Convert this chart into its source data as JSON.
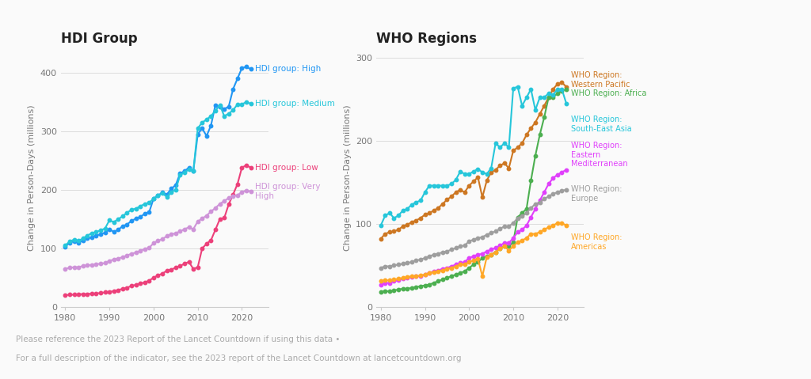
{
  "years": [
    1980,
    1981,
    1982,
    1983,
    1984,
    1985,
    1986,
    1987,
    1988,
    1989,
    1990,
    1991,
    1992,
    1993,
    1994,
    1995,
    1996,
    1997,
    1998,
    1999,
    2000,
    2001,
    2002,
    2003,
    2004,
    2005,
    2006,
    2007,
    2008,
    2009,
    2010,
    2011,
    2012,
    2013,
    2014,
    2015,
    2016,
    2017,
    2018,
    2019,
    2020,
    2021,
    2022
  ],
  "hdi_high": [
    103,
    110,
    112,
    110,
    113,
    117,
    119,
    122,
    124,
    127,
    133,
    128,
    132,
    138,
    141,
    147,
    151,
    154,
    159,
    162,
    185,
    190,
    196,
    192,
    202,
    208,
    228,
    232,
    238,
    232,
    295,
    305,
    292,
    310,
    345,
    342,
    338,
    342,
    372,
    390,
    408,
    410,
    406
  ],
  "hdi_medium": [
    105,
    112,
    115,
    113,
    117,
    122,
    126,
    128,
    131,
    134,
    148,
    145,
    150,
    155,
    161,
    166,
    168,
    172,
    176,
    178,
    185,
    190,
    194,
    188,
    196,
    200,
    225,
    230,
    235,
    232,
    305,
    315,
    320,
    326,
    335,
    345,
    326,
    330,
    336,
    346,
    346,
    350,
    347
  ],
  "hdi_low": [
    20,
    21,
    21,
    22,
    22,
    22,
    23,
    23,
    24,
    25,
    26,
    27,
    29,
    31,
    33,
    36,
    38,
    40,
    42,
    45,
    50,
    54,
    57,
    62,
    64,
    67,
    70,
    74,
    77,
    65,
    68,
    100,
    108,
    114,
    132,
    150,
    152,
    175,
    192,
    210,
    238,
    242,
    238
  ],
  "hdi_veryhigh": [
    65,
    67,
    68,
    68,
    70,
    71,
    72,
    73,
    74,
    75,
    79,
    81,
    83,
    85,
    88,
    91,
    93,
    96,
    99,
    101,
    109,
    113,
    116,
    121,
    124,
    126,
    129,
    133,
    136,
    133,
    146,
    151,
    156,
    163,
    169,
    176,
    181,
    186,
    189,
    191,
    196,
    199,
    197
  ],
  "who_wp": [
    82,
    88,
    90,
    91,
    93,
    97,
    99,
    102,
    104,
    107,
    111,
    113,
    116,
    119,
    124,
    129,
    133,
    138,
    141,
    138,
    146,
    151,
    156,
    132,
    152,
    162,
    165,
    170,
    173,
    167,
    188,
    192,
    197,
    207,
    215,
    222,
    232,
    242,
    252,
    262,
    268,
    270,
    265
  ],
  "who_afr": [
    18,
    19,
    19,
    20,
    21,
    22,
    22,
    23,
    24,
    25,
    26,
    27,
    29,
    31,
    33,
    35,
    37,
    39,
    41,
    43,
    47,
    51,
    54,
    59,
    61,
    63,
    66,
    70,
    73,
    73,
    78,
    108,
    113,
    118,
    152,
    182,
    207,
    228,
    252,
    252,
    257,
    260,
    262
  ],
  "who_sea": [
    98,
    110,
    113,
    107,
    110,
    116,
    118,
    123,
    126,
    128,
    138,
    146,
    146,
    146,
    146,
    146,
    148,
    153,
    163,
    160,
    160,
    163,
    166,
    162,
    160,
    167,
    197,
    192,
    197,
    192,
    263,
    265,
    242,
    252,
    262,
    237,
    252,
    252,
    257,
    255,
    262,
    262,
    245
  ],
  "who_emr": [
    27,
    29,
    29,
    31,
    32,
    34,
    35,
    36,
    37,
    37,
    39,
    41,
    43,
    44,
    46,
    47,
    49,
    51,
    53,
    54,
    59,
    61,
    63,
    64,
    67,
    69,
    71,
    74,
    77,
    77,
    83,
    90,
    93,
    98,
    108,
    118,
    128,
    138,
    148,
    155,
    159,
    162,
    165
  ],
  "who_eur": [
    47,
    49,
    49,
    50,
    51,
    52,
    53,
    54,
    56,
    57,
    59,
    61,
    63,
    64,
    66,
    67,
    69,
    71,
    73,
    74,
    79,
    81,
    83,
    84,
    87,
    89,
    91,
    94,
    97,
    97,
    101,
    107,
    109,
    113,
    119,
    124,
    126,
    130,
    133,
    136,
    138,
    140,
    141
  ],
  "who_amr": [
    31,
    32,
    32,
    33,
    34,
    35,
    36,
    37,
    37,
    38,
    39,
    41,
    42,
    43,
    44,
    46,
    47,
    49,
    51,
    51,
    54,
    56,
    58,
    37,
    60,
    63,
    66,
    70,
    73,
    68,
    73,
    78,
    80,
    83,
    88,
    88,
    90,
    93,
    96,
    98,
    101,
    101,
    98
  ],
  "hdi_high_color": "#2196F3",
  "hdi_medium_color": "#26C6DA",
  "hdi_low_color": "#EC407A",
  "hdi_veryhigh_color": "#CE93D8",
  "who_wp_color": "#CD7722",
  "who_afr_color": "#4CAF50",
  "who_sea_color": "#26C6DA",
  "who_emr_color": "#E040FB",
  "who_eur_color": "#9E9E9E",
  "who_amr_color": "#FFA726",
  "bg_color": "#FAFAFA",
  "title_left": "HDI Group",
  "title_right": "WHO Regions",
  "ylabel": "Change in Person-Days (millions)",
  "footnote1": "Please reference the 2023 Report of the Lancet Countdown if using this data •",
  "footnote2": "For a full description of the indicator, see the 2023 report of the Lancet Countdown at lancetcountdown.org",
  "xlim_left": [
    1979,
    2026
  ],
  "xlim_right": [
    1979,
    2026
  ],
  "ylim_left": [
    0,
    440
  ],
  "ylim_right": [
    0,
    310
  ],
  "xticks": [
    1980,
    1990,
    2000,
    2010,
    2020
  ],
  "yticks_left": [
    0,
    100,
    200,
    300,
    400
  ],
  "yticks_right": [
    0,
    100,
    200,
    300
  ],
  "lw": 1.5,
  "ms": 3.2
}
